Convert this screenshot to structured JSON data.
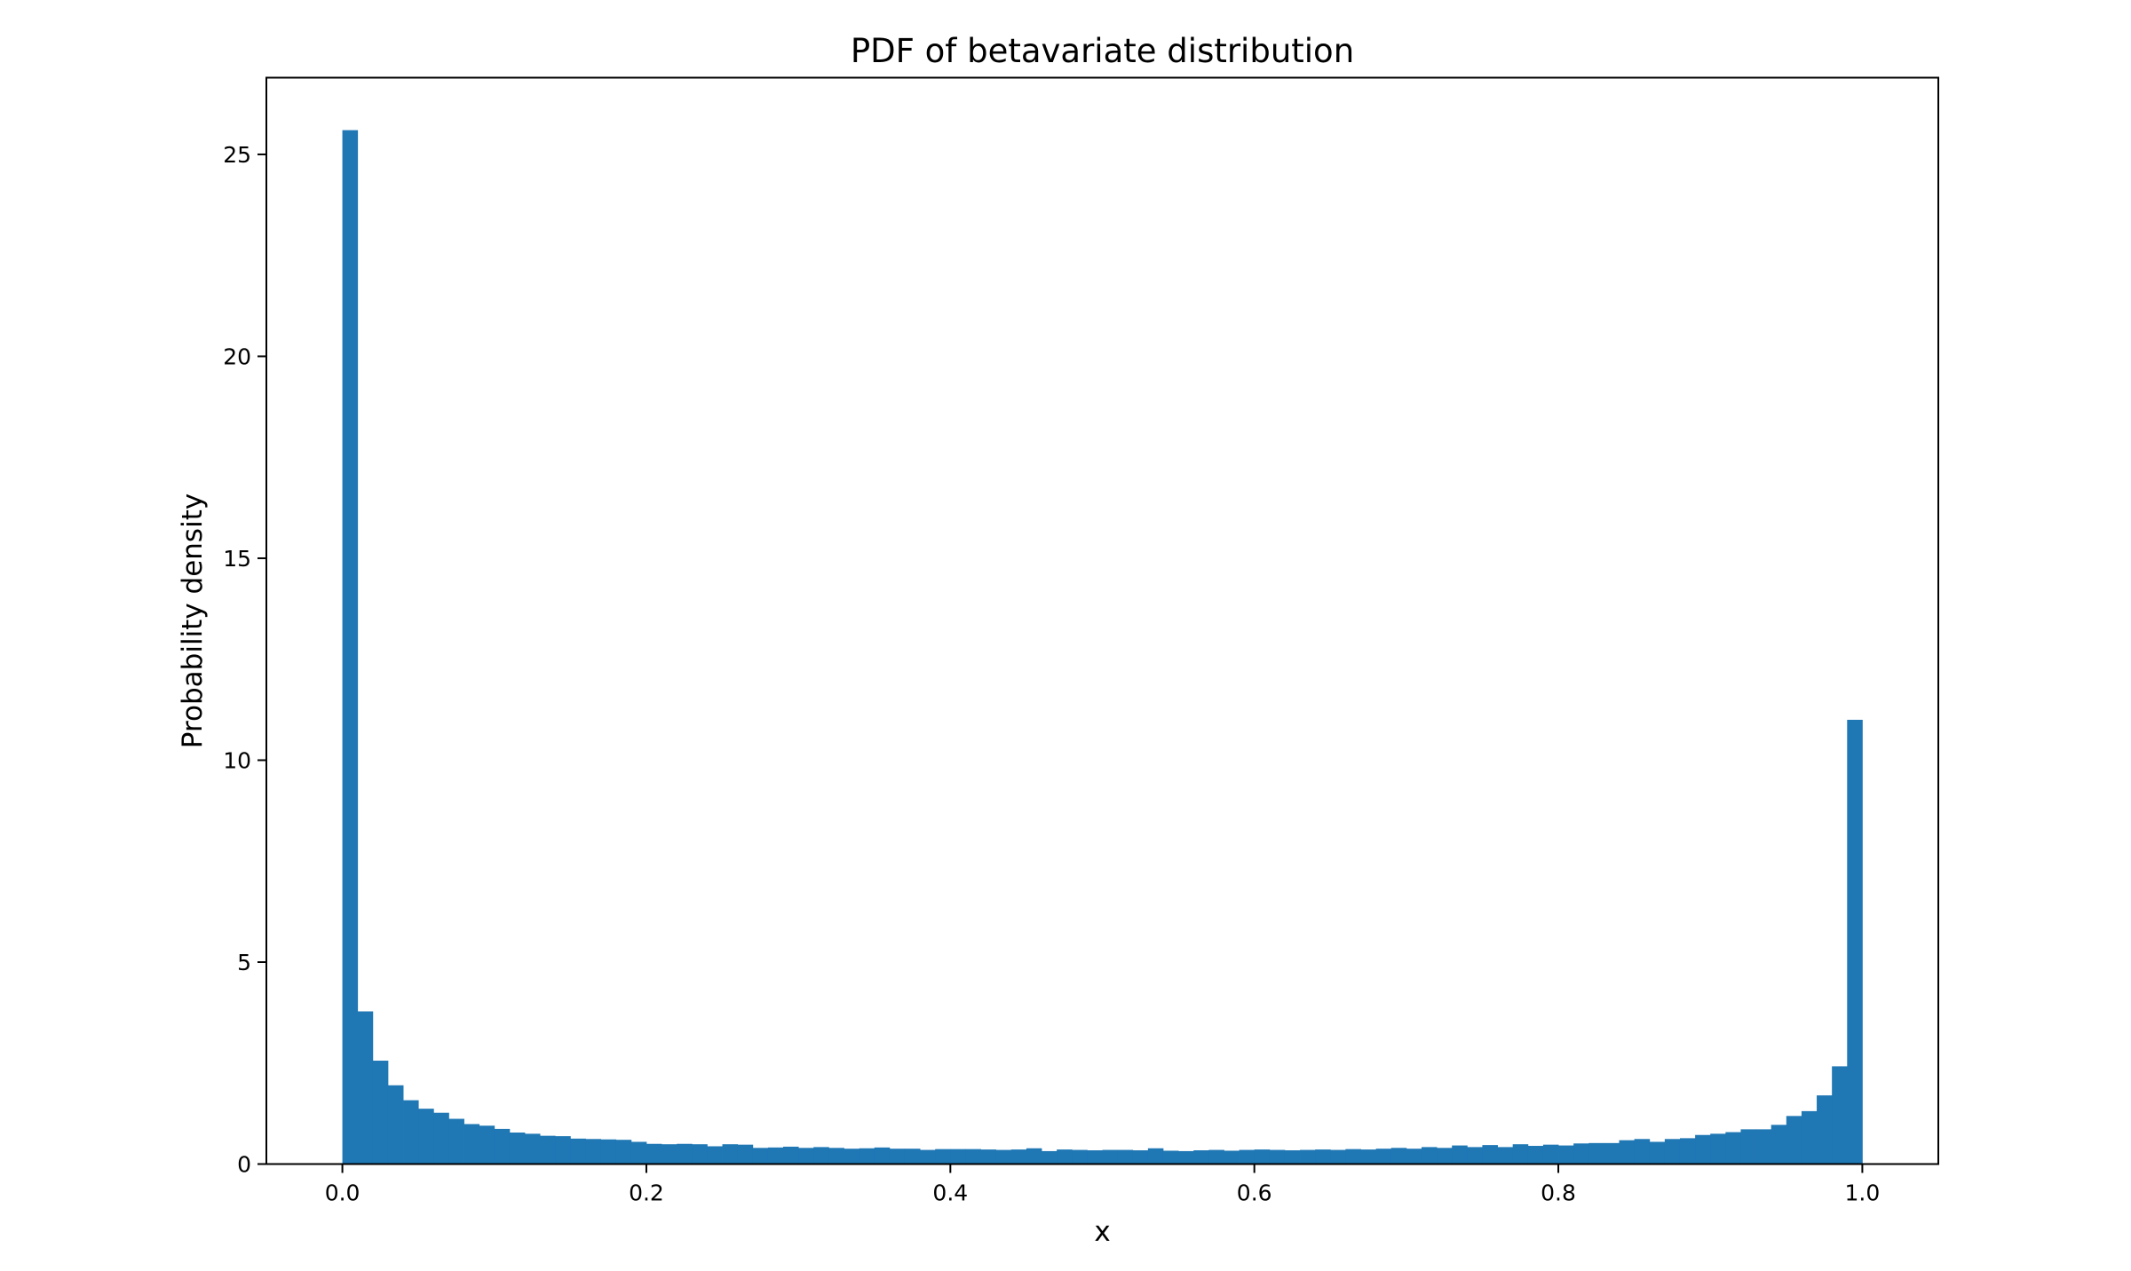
{
  "chart_data": {
    "type": "bar",
    "title": "PDF of betavariate distribution",
    "xlabel": "x",
    "ylabel": "Probability density",
    "xlim": [
      -0.05,
      1.05
    ],
    "ylim": [
      0,
      26.9
    ],
    "xticks": [
      "0.0",
      "0.2",
      "0.4",
      "0.6",
      "0.8",
      "1.0"
    ],
    "yticks": [
      "0",
      "5",
      "10",
      "15",
      "20",
      "25"
    ],
    "bin_range": [
      0,
      1
    ],
    "bins": 100,
    "bar_color": "#1f77b4",
    "grid": false,
    "values": [
      25.6,
      3.78,
      2.56,
      1.95,
      1.58,
      1.37,
      1.27,
      1.12,
      0.99,
      0.95,
      0.87,
      0.78,
      0.75,
      0.7,
      0.69,
      0.63,
      0.62,
      0.61,
      0.6,
      0.55,
      0.5,
      0.49,
      0.5,
      0.49,
      0.44,
      0.49,
      0.48,
      0.4,
      0.41,
      0.43,
      0.4,
      0.42,
      0.4,
      0.38,
      0.39,
      0.41,
      0.38,
      0.38,
      0.35,
      0.37,
      0.37,
      0.37,
      0.36,
      0.35,
      0.36,
      0.39,
      0.32,
      0.36,
      0.35,
      0.34,
      0.35,
      0.35,
      0.34,
      0.39,
      0.33,
      0.32,
      0.34,
      0.35,
      0.33,
      0.35,
      0.36,
      0.35,
      0.34,
      0.35,
      0.36,
      0.35,
      0.37,
      0.36,
      0.38,
      0.4,
      0.38,
      0.42,
      0.4,
      0.46,
      0.42,
      0.47,
      0.42,
      0.49,
      0.45,
      0.48,
      0.46,
      0.51,
      0.52,
      0.52,
      0.59,
      0.62,
      0.55,
      0.62,
      0.64,
      0.72,
      0.75,
      0.79,
      0.86,
      0.86,
      0.97,
      1.19,
      1.31,
      1.7,
      2.42,
      11.0
    ]
  }
}
